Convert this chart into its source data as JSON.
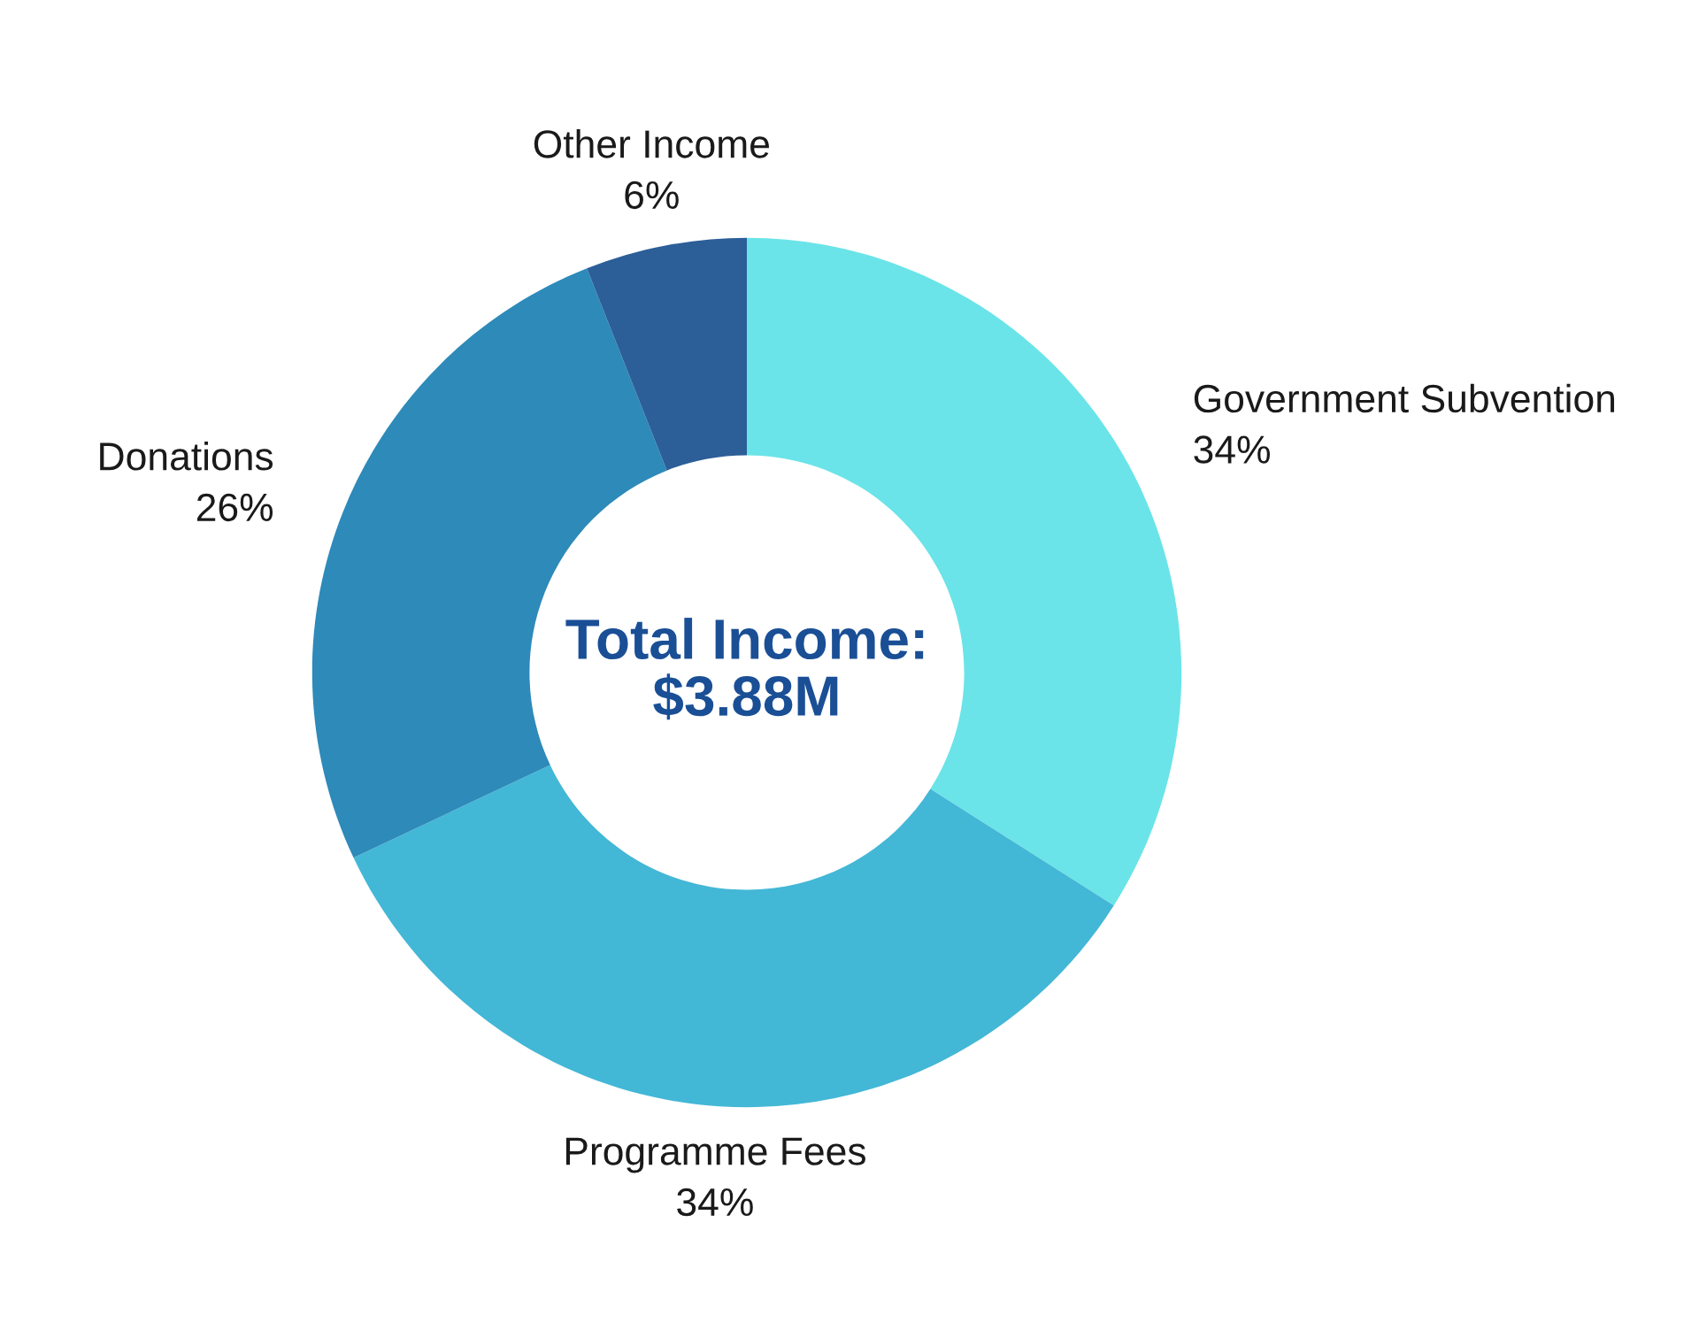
{
  "chart_data": {
    "type": "donut",
    "categories": [
      "Government Subvention",
      "Programme Fees",
      "Donations",
      "Other Income"
    ],
    "values": [
      34,
      34,
      26,
      6
    ],
    "value_labels": [
      "34%",
      "34%",
      "26%",
      "6%"
    ],
    "colors": [
      "#6ae4e8",
      "#43b7d6",
      "#2d8ab9",
      "#2c5e98"
    ],
    "annotations": [
      "Total Income:\n$3.88M"
    ],
    "legend": false
  }
}
